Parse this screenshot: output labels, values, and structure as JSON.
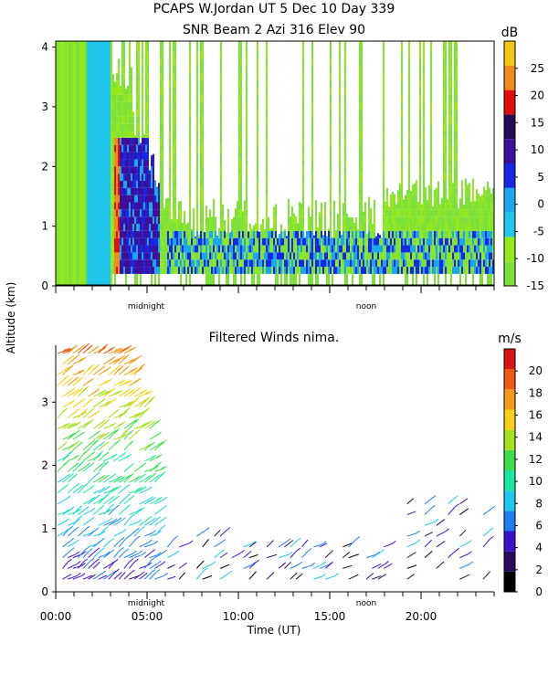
{
  "header": {
    "title_line1": "PCAPS W.Jordan UT   5 Dec 10 Day 339",
    "title_line2": "SNR Beam 2 Azi 316 Elev 90"
  },
  "shared": {
    "ylabel": "Altitude (km)",
    "xlabel": "Time (UT)",
    "x_ticks": [
      "00:00",
      "05:00",
      "10:00",
      "15:00",
      "20:00"
    ],
    "markers": [
      "midnight",
      "noon"
    ]
  },
  "chart_data": [
    {
      "type": "heatmap",
      "title": "SNR Beam 2 Azi 316 Elev 90",
      "x_range_hours": [
        0,
        24
      ],
      "y_range_km": [
        0,
        4.1
      ],
      "y_ticks": [
        "0",
        "1",
        "2",
        "3",
        "4"
      ],
      "colorbar": {
        "unit": "dB",
        "range": [
          -15,
          30
        ],
        "ticks": [
          "-15",
          "-10",
          "-5",
          "0",
          "5",
          "10",
          "15",
          "20",
          "25"
        ],
        "colors": [
          "#7ee03a",
          "#93e81e",
          "#20c6ea",
          "#1aa7f0",
          "#1528e6",
          "#3d0f9a",
          "#240b56",
          "#e01010",
          "#f08a1a",
          "#f6c614"
        ]
      }
    },
    {
      "type": "scatter",
      "title": "Filtered Winds nima.",
      "x_range_hours": [
        0,
        24
      ],
      "y_range_km": [
        0,
        3.9
      ],
      "y_ticks": [
        "0",
        "1",
        "2",
        "3"
      ],
      "colorbar": {
        "unit": "m/s",
        "range": [
          0,
          22
        ],
        "ticks": [
          "0",
          "2",
          "4",
          "6",
          "8",
          "10",
          "12",
          "14",
          "16",
          "18",
          "20"
        ],
        "colors": [
          "#000000",
          "#2a0b5a",
          "#3e10c8",
          "#1f7ef0",
          "#1ec8ee",
          "#1ee8a0",
          "#3ee04a",
          "#a6e01e",
          "#f6d01a",
          "#f39a1a",
          "#ee5a14",
          "#d81414"
        ]
      }
    }
  ]
}
